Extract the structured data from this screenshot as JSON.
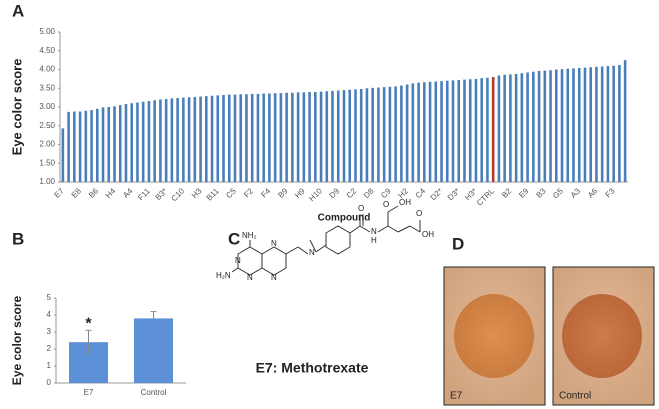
{
  "panel_labels": [
    "A",
    "B",
    "C",
    "D"
  ],
  "chart_data": [
    {
      "type": "bar",
      "ylabel": "Eye color score",
      "xlabel": "Compound",
      "color": "#4a7ebb",
      "highlight": {
        "category": "CTRL",
        "color": "#b03a2e"
      },
      "ylim": [
        1,
        5
      ],
      "yticks": [
        {
          "value": 1,
          "label": "1.00"
        },
        {
          "value": 1.5,
          "label": "1.50"
        },
        {
          "value": 2,
          "label": "2.00"
        },
        {
          "value": 2.5,
          "label": "2.50"
        },
        {
          "value": 3,
          "label": "3.00"
        },
        {
          "value": 3.5,
          "label": "3.50"
        },
        {
          "value": 4,
          "label": "4.00"
        },
        {
          "value": 4.5,
          "label": "4.50"
        },
        {
          "value": 5,
          "label": "5.00"
        }
      ],
      "categories": [
        "E7",
        null,
        null,
        "E8",
        null,
        null,
        "B6",
        null,
        null,
        "H4",
        null,
        null,
        "A4",
        null,
        null,
        "F11",
        null,
        null,
        "B3*",
        null,
        null,
        "C10",
        null,
        null,
        "H3",
        null,
        null,
        "B11",
        null,
        null,
        "C5",
        null,
        null,
        "F2",
        null,
        null,
        "F4",
        null,
        null,
        "B9",
        null,
        null,
        "H9",
        null,
        null,
        "H10",
        null,
        null,
        "D9",
        null,
        null,
        "C2",
        null,
        null,
        "D8",
        null,
        null,
        "C9",
        null,
        null,
        "H2",
        null,
        null,
        "C4",
        null,
        null,
        "D2*",
        null,
        null,
        "D3*",
        null,
        null,
        "H3*",
        null,
        null,
        "CTRL",
        null,
        null,
        "B2",
        null,
        null,
        "E9",
        null,
        null,
        "B3",
        null,
        null,
        "G5",
        null,
        null,
        "A3",
        null,
        null,
        "A6",
        null,
        null,
        "F3",
        null,
        null
      ],
      "values": [
        2.43,
        2.87,
        2.88,
        2.88,
        2.9,
        2.92,
        2.95,
        2.99,
        3.0,
        3.02,
        3.05,
        3.08,
        3.1,
        3.12,
        3.14,
        3.16,
        3.18,
        3.2,
        3.21,
        3.23,
        3.24,
        3.25,
        3.26,
        3.27,
        3.28,
        3.29,
        3.3,
        3.31,
        3.32,
        3.33,
        3.33,
        3.34,
        3.34,
        3.35,
        3.35,
        3.36,
        3.36,
        3.37,
        3.37,
        3.38,
        3.38,
        3.39,
        3.39,
        3.4,
        3.4,
        3.41,
        3.42,
        3.43,
        3.44,
        3.45,
        3.46,
        3.47,
        3.48,
        3.5,
        3.51,
        3.52,
        3.53,
        3.54,
        3.55,
        3.57,
        3.6,
        3.63,
        3.65,
        3.66,
        3.67,
        3.68,
        3.69,
        3.7,
        3.71,
        3.72,
        3.73,
        3.74,
        3.75,
        3.77,
        3.78,
        3.8,
        3.84,
        3.86,
        3.87,
        3.88,
        3.9,
        3.92,
        3.94,
        3.96,
        3.97,
        3.98,
        4.0,
        4.01,
        4.02,
        4.03,
        4.04,
        4.05,
        4.06,
        4.07,
        4.08,
        4.09,
        4.1,
        4.12,
        4.25
      ]
    },
    {
      "type": "bar",
      "ylabel": "Eye color score",
      "color": "#5b8fd6",
      "categories": [
        "E7",
        "Control"
      ],
      "values": [
        2.4,
        3.8
      ],
      "errors": [
        0.7,
        0.4
      ],
      "ylim": [
        0,
        5
      ],
      "yticks": [
        0,
        1,
        2,
        3,
        4,
        5
      ],
      "annotation": "*"
    }
  ],
  "structure": {
    "caption": "E7: Methotrexate",
    "atoms": [
      "NH₂",
      "H₂N",
      "N",
      "N",
      "N",
      "N",
      "N",
      "O",
      "N",
      "H",
      "O",
      "OH",
      "O",
      "OH"
    ]
  },
  "photos": [
    "E7",
    "Control"
  ]
}
